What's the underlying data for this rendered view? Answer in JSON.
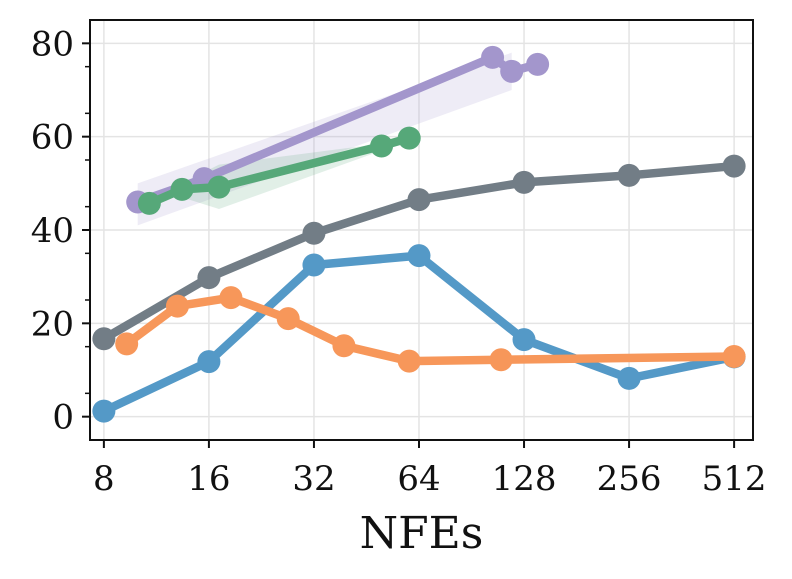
{
  "chart_data": {
    "type": "line",
    "title": "",
    "xlabel": "NFEs",
    "ylabel": "",
    "x_scale": "log2",
    "xlim": [
      7.3,
      580
    ],
    "ylim": [
      -5,
      85
    ],
    "grid": true,
    "x_ticks": [
      8,
      16,
      32,
      64,
      128,
      256,
      512
    ],
    "x_tick_labels": [
      "8",
      "16",
      "32",
      "64",
      "128",
      "256",
      "512"
    ],
    "y_ticks": [
      0,
      20,
      40,
      60,
      80
    ],
    "y_tick_labels": [
      "0",
      "20",
      "40",
      "60",
      "80"
    ],
    "series": [
      {
        "name": "purple",
        "color": "#a396cc",
        "x": [
          10,
          15.5,
          104,
          118,
          140
        ],
        "y": [
          46,
          51,
          77,
          74,
          75.5
        ],
        "band": {
          "x": [
            10,
            118
          ],
          "lower": [
            41,
            70
          ],
          "upper": [
            50,
            78
          ]
        }
      },
      {
        "name": "green",
        "color": "#56a879",
        "x": [
          10.8,
          13.4,
          17.1,
          50,
          60
        ],
        "y": [
          45.7,
          48.7,
          49.2,
          58,
          59.7
        ],
        "band": {
          "x": [
            13.4,
            17.1,
            50
          ],
          "lower": [
            47,
            44.5,
            57
          ],
          "upper": [
            50,
            54,
            58.5
          ]
        }
      },
      {
        "name": "gray",
        "color": "#727d86",
        "x": [
          8,
          16,
          32,
          64,
          128,
          256,
          512
        ],
        "y": [
          16.7,
          29.8,
          39.3,
          46.5,
          50.2,
          51.7,
          53.7
        ]
      },
      {
        "name": "blue",
        "color": "#5499c7",
        "x": [
          8,
          16,
          32,
          64,
          128,
          256,
          512
        ],
        "y": [
          1.2,
          11.8,
          32.5,
          34.5,
          16.5,
          8.2,
          12.8
        ]
      },
      {
        "name": "orange",
        "color": "#f7975a",
        "x": [
          9.3,
          13,
          18.5,
          27,
          39,
          60,
          110,
          512
        ],
        "y": [
          15.6,
          23.7,
          25.5,
          21,
          15.2,
          11.9,
          12.2,
          12.9
        ]
      }
    ]
  }
}
